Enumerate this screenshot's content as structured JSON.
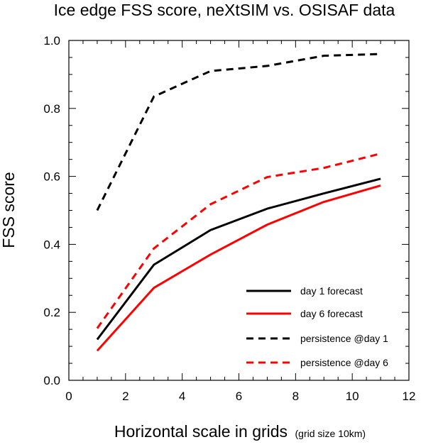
{
  "chart_data": {
    "type": "line",
    "title": "Ice edge FSS score, neXtSIM vs. OSISAF data",
    "xlabel": "Horizontal scale in grids",
    "xlabel_note": "(grid size 10km)",
    "ylabel": "FSS score",
    "xlim": [
      0,
      12
    ],
    "ylim": [
      0,
      1.0
    ],
    "xticks": [
      0,
      2,
      4,
      6,
      8,
      10,
      12
    ],
    "xtick_labels": [
      "0",
      "2",
      "4",
      "6",
      "8",
      "10",
      "12"
    ],
    "yticks": [
      0,
      0.2,
      0.4,
      0.6,
      0.8,
      1.0
    ],
    "ytick_labels": [
      "0.0",
      "0.2",
      "0.4",
      "0.6",
      "0.8",
      "1.0"
    ],
    "grid": false,
    "legend_position": "bottom-right",
    "x": [
      1,
      3,
      5,
      7,
      9,
      11
    ],
    "series": [
      {
        "name": "day 1 forecast",
        "values": [
          0.12,
          0.34,
          0.442,
          0.505,
          0.55,
          0.593
        ],
        "color": "#000000",
        "dashed": false
      },
      {
        "name": "day 6 forecast",
        "values": [
          0.087,
          0.272,
          0.37,
          0.458,
          0.525,
          0.573
        ],
        "color": "#ff0000",
        "dashed": false
      },
      {
        "name": "persistence @day 1",
        "values": [
          0.5,
          0.835,
          0.91,
          0.925,
          0.955,
          0.96
        ],
        "color": "#000000",
        "dashed": true
      },
      {
        "name": "persistence @day 6",
        "values": [
          0.153,
          0.388,
          0.518,
          0.598,
          0.625,
          0.667
        ],
        "color": "#ff0000",
        "dashed": true
      }
    ]
  }
}
